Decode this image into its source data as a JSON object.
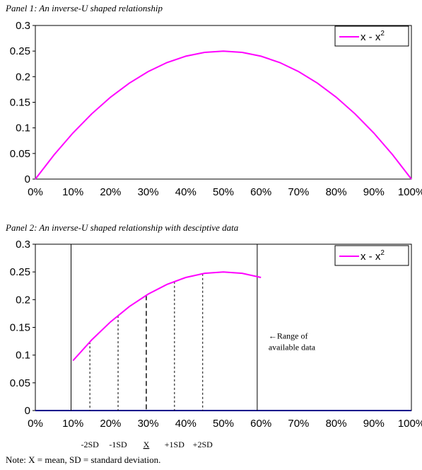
{
  "chart_data": [
    {
      "type": "line",
      "title": "Panel 1: An inverse-U shaped relationship",
      "x": [
        0,
        5,
        10,
        15,
        20,
        25,
        30,
        35,
        40,
        45,
        50,
        55,
        60,
        65,
        70,
        75,
        80,
        85,
        90,
        95,
        100
      ],
      "xticks": [
        "0%",
        "10%",
        "20%",
        "30%",
        "40%",
        "50%",
        "60%",
        "70%",
        "80%",
        "90%",
        "100%"
      ],
      "xlim": [
        0,
        100
      ],
      "yticks": [
        "0",
        "0.05",
        "0.1",
        "0.15",
        "0.2",
        "0.25",
        "0.3"
      ],
      "ylim": [
        0,
        0.3
      ],
      "series": [
        {
          "name": "x - x",
          "name_superscript": "2",
          "color": "#ff00ff",
          "values": [
            0,
            0.0475,
            0.09,
            0.1275,
            0.16,
            0.1875,
            0.21,
            0.2275,
            0.24,
            0.2475,
            0.25,
            0.2475,
            0.24,
            0.2275,
            0.21,
            0.1875,
            0.16,
            0.1275,
            0.09,
            0.0475,
            0
          ]
        }
      ],
      "legend_position": "top-right",
      "grid": false
    },
    {
      "type": "line",
      "title": "Panel 2: An inverse-U shaped relationship with desciptive data",
      "x": [
        10,
        15,
        20,
        25,
        30,
        35,
        40,
        45,
        50,
        55,
        60
      ],
      "xticks": [
        "0%",
        "10%",
        "20%",
        "30%",
        "40%",
        "50%",
        "60%",
        "70%",
        "80%",
        "90%",
        "100%"
      ],
      "xlim": [
        0,
        100
      ],
      "yticks": [
        "0",
        "0.05",
        "0.1",
        "0.15",
        "0.2",
        "0.25",
        "0.3"
      ],
      "ylim": [
        0,
        0.3
      ],
      "series": [
        {
          "name": "x - x",
          "name_superscript": "2",
          "color": "#ff00ff",
          "values": [
            0.09,
            0.1275,
            0.16,
            0.1875,
            0.21,
            0.2275,
            0.24,
            0.2475,
            0.25,
            0.2475,
            0.24
          ]
        }
      ],
      "legend_position": "top-right",
      "grid": false,
      "range_lines_x": [
        9.5,
        59
      ],
      "sd_markers": [
        {
          "label": "-2SD",
          "x": 14.5,
          "style": "dotted"
        },
        {
          "label": "-1SD",
          "x": 22,
          "style": "dotted"
        },
        {
          "label": "X",
          "x": 29.5,
          "style": "dashed",
          "underline": true
        },
        {
          "label": "+1SD",
          "x": 37,
          "style": "dotted"
        },
        {
          "label": "+2SD",
          "x": 44.5,
          "style": "dotted"
        }
      ],
      "annotation": {
        "arrow": "←",
        "line1": "Range of",
        "line2": "available data",
        "x": 62,
        "y": 0.112
      },
      "baseline_color": "#00008b"
    }
  ],
  "note": "Note: X = mean, SD = standard deviation."
}
